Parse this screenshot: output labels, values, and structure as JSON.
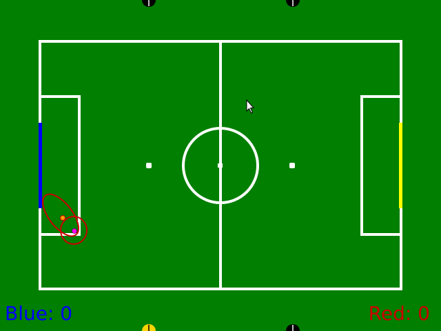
{
  "scoreboard": {
    "blue_label": "Blue: 0",
    "red_label": "Red: 0"
  },
  "colors": {
    "field": "#007f00",
    "lines": "#ffffff",
    "blue_team": "#0000ff",
    "red_team": "#cc0000",
    "blue_goal": "#0000ff",
    "yellow_goal": "#ffff00",
    "ball": "#ff00ff",
    "robot_center": "#ffa000",
    "robot_marker_dark": "#000000",
    "robot_marker_yellow": "#ffd400"
  },
  "icons": {
    "cursor": "mouse-pointer-icon",
    "robot_marker": "robot-half-disc-icon"
  }
}
